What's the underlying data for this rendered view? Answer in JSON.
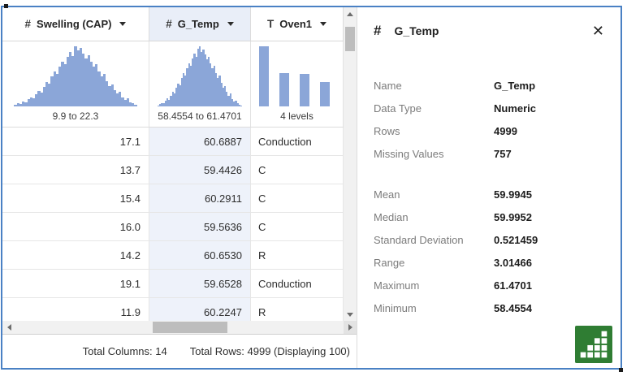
{
  "colors": {
    "window_border": "#4a81c4",
    "histogram_fill": "#8ba6d8",
    "selected_column_header_bg": "#e9eef8",
    "selected_column_cell_bg": "#eef2fa",
    "logo_green": "#2f7d33"
  },
  "table": {
    "columns": [
      {
        "type_icon": "#",
        "kind": "numeric",
        "label": "Swelling (CAP)",
        "summary": "9.9 to 22.3",
        "selected": false,
        "hist": [
          0.03,
          0.05,
          0.04,
          0.08,
          0.07,
          0.12,
          0.15,
          0.13,
          0.2,
          0.26,
          0.23,
          0.33,
          0.41,
          0.38,
          0.5,
          0.58,
          0.54,
          0.66,
          0.74,
          0.7,
          0.82,
          0.9,
          0.84,
          1.0,
          0.93,
          0.97,
          0.88,
          0.8,
          0.85,
          0.74,
          0.66,
          0.7,
          0.58,
          0.5,
          0.54,
          0.42,
          0.34,
          0.37,
          0.27,
          0.21,
          0.24,
          0.15,
          0.11,
          0.13,
          0.07,
          0.05,
          0.03
        ]
      },
      {
        "type_icon": "#",
        "kind": "numeric",
        "label": "G_Temp",
        "summary": "58.4554 to 61.4701",
        "selected": true,
        "hist": [
          0.02,
          0.04,
          0.06,
          0.05,
          0.1,
          0.13,
          0.11,
          0.18,
          0.24,
          0.21,
          0.31,
          0.38,
          0.35,
          0.47,
          0.55,
          0.51,
          0.63,
          0.72,
          0.67,
          0.8,
          0.88,
          0.82,
          0.96,
          1.0,
          0.91,
          0.95,
          0.86,
          0.78,
          0.83,
          0.72,
          0.63,
          0.67,
          0.55,
          0.47,
          0.51,
          0.39,
          0.31,
          0.34,
          0.24,
          0.18,
          0.21,
          0.12,
          0.08,
          0.1,
          0.05,
          0.03,
          0.02
        ]
      },
      {
        "type_icon": "T",
        "kind": "character",
        "label": "Oven1",
        "summary": "4 levels",
        "selected": false,
        "hist": [
          1.0,
          0.56,
          0.54,
          0.4
        ]
      }
    ],
    "rows": [
      [
        "17.1",
        "60.6887",
        "Conduction"
      ],
      [
        "13.7",
        "59.4426",
        "C"
      ],
      [
        "15.4",
        "60.2911",
        "C"
      ],
      [
        "16.0",
        "59.5636",
        "C"
      ],
      [
        "14.2",
        "60.6530",
        "R"
      ],
      [
        "19.1",
        "59.6528",
        "Conduction"
      ],
      [
        "11.9",
        "60.2247",
        "R"
      ]
    ],
    "footer": {
      "total_columns": "Total Columns: 14",
      "total_rows": "Total Rows: 4999 (Displaying 100)"
    }
  },
  "panel": {
    "type_icon": "#",
    "title": "G_Temp",
    "close_label": "✕",
    "groups": [
      [
        {
          "label": "Name",
          "value": "G_Temp"
        },
        {
          "label": "Data Type",
          "value": "Numeric"
        },
        {
          "label": "Rows",
          "value": "4999"
        },
        {
          "label": "Missing Values",
          "value": "757"
        }
      ],
      [
        {
          "label": "Mean",
          "value": "59.9945"
        },
        {
          "label": "Median",
          "value": "59.9952"
        },
        {
          "label": "Standard Deviation",
          "value": "0.521459"
        },
        {
          "label": "Range",
          "value": "3.01466"
        },
        {
          "label": "Maximum",
          "value": "61.4701"
        },
        {
          "label": "Minimum",
          "value": "58.4554"
        }
      ]
    ]
  }
}
